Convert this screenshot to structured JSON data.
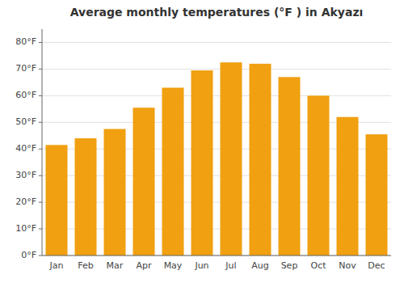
{
  "chart_data": {
    "type": "bar",
    "title": "Average monthly temperatures (°F ) in Akyazı",
    "categories": [
      "Jan",
      "Feb",
      "Mar",
      "Apr",
      "May",
      "Jun",
      "Jul",
      "Aug",
      "Sep",
      "Oct",
      "Nov",
      "Dec"
    ],
    "values": [
      41.5,
      44.0,
      47.5,
      55.5,
      63.0,
      69.5,
      72.5,
      72.0,
      67.0,
      60.0,
      52.0,
      45.5
    ],
    "color": "#F0A010",
    "ylim": [
      0,
      85
    ],
    "yticks": [
      {
        "value": 0,
        "label": "0°F"
      },
      {
        "value": 10,
        "label": "10°F"
      },
      {
        "value": 20,
        "label": "20°F"
      },
      {
        "value": 30,
        "label": "30°F"
      },
      {
        "value": 40,
        "label": "40°F"
      },
      {
        "value": 50,
        "label": "50°F"
      },
      {
        "value": 60,
        "label": "60°F"
      },
      {
        "value": 70,
        "label": "70°F"
      },
      {
        "value": 80,
        "label": "80°F"
      }
    ],
    "grid": true
  }
}
